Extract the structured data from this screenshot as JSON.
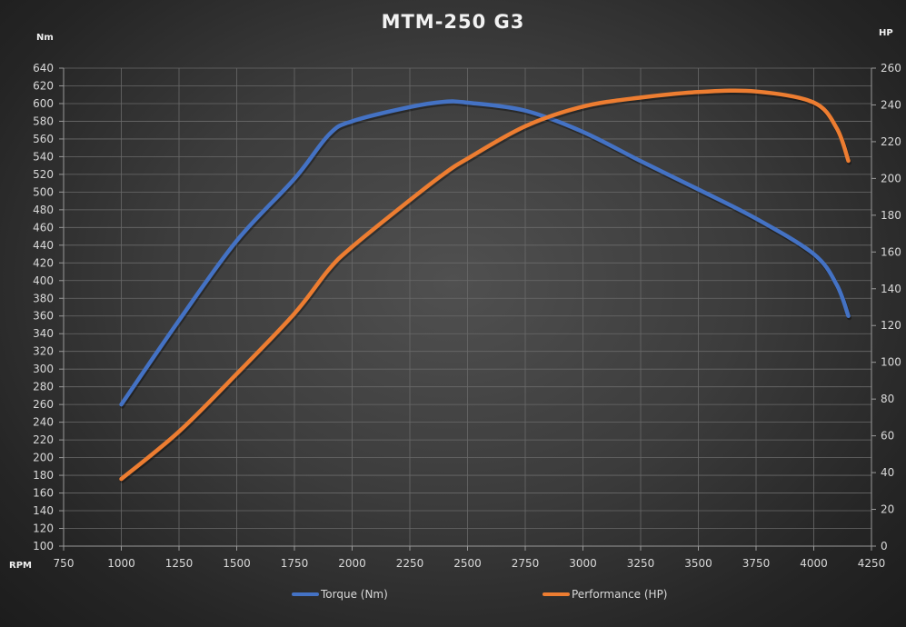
{
  "chart_data": {
    "type": "line",
    "title": "MTM-250 G3",
    "xlabel": "RPM",
    "ylabel": "Nm",
    "y2label": "HP",
    "xlim": [
      750,
      4250
    ],
    "xticks": [
      750,
      1000,
      1250,
      1500,
      1750,
      2000,
      2250,
      2500,
      2750,
      3000,
      3250,
      3500,
      3750,
      4000,
      4250
    ],
    "ylim": [
      100,
      640
    ],
    "ytick_step": 20,
    "y2lim": [
      0,
      260
    ],
    "y2tick_step": 20,
    "grid": true,
    "legend_position": "bottom",
    "x": [
      1000,
      1250,
      1500,
      1750,
      1900,
      2000,
      2250,
      2400,
      2500,
      2750,
      3000,
      3250,
      3500,
      3750,
      4000,
      4100,
      4150
    ],
    "series": [
      {
        "name": "Torque (Nm)",
        "axis": "left",
        "color": "#4472C4",
        "values": [
          260,
          355,
          445,
          515,
          565,
          580,
          596,
          602,
          601,
          592,
          568,
          535,
          503,
          470,
          430,
          395,
          360
        ]
      },
      {
        "name": "Performance (HP)",
        "axis": "right",
        "color": "#ED7D31",
        "values": [
          36.5,
          62.3,
          93.7,
          126.5,
          150.6,
          162.8,
          188.2,
          202.7,
          210.8,
          228.4,
          239.1,
          244,
          247,
          247.3,
          241.3,
          227.2,
          209.6
        ]
      }
    ]
  }
}
